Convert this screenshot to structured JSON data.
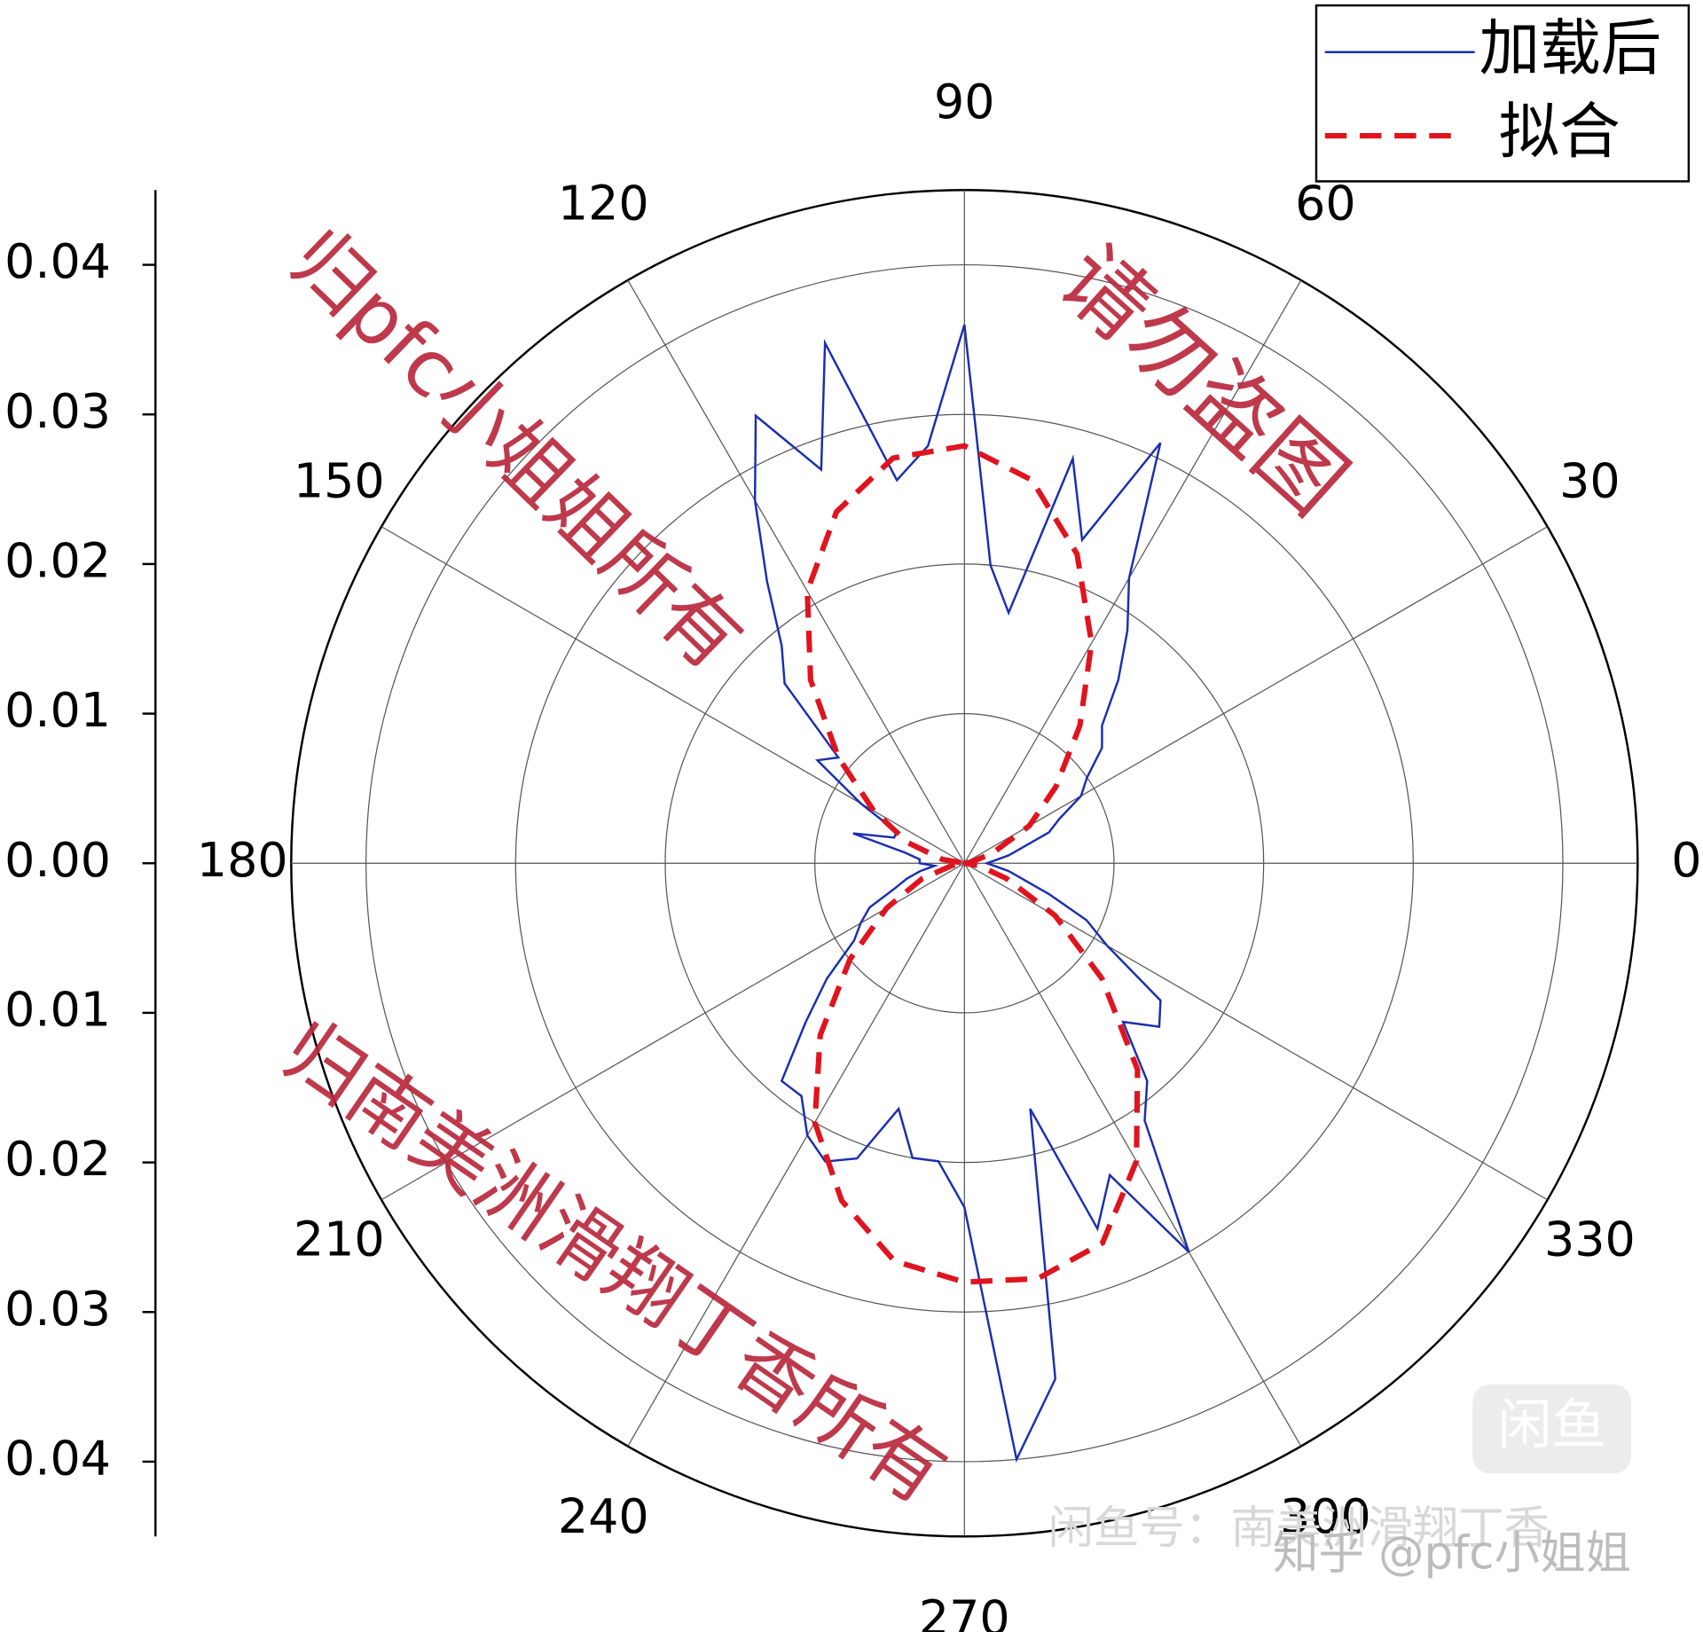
{
  "chart_data": {
    "type": "polar",
    "series": [
      {
        "name": "加载后",
        "color": "#1a2eb0",
        "dash": false,
        "x": [
          0,
          5,
          10,
          15,
          20,
          25,
          30,
          35,
          40,
          45,
          50,
          55,
          60,
          65,
          70,
          75,
          80,
          85,
          90,
          95,
          100,
          105,
          110,
          115,
          120,
          125,
          130,
          135,
          140,
          145,
          150,
          155,
          160,
          165,
          170,
          175,
          180,
          185,
          190,
          195,
          200,
          205,
          210,
          215,
          220,
          225,
          230,
          235,
          240,
          245,
          250,
          255,
          260,
          265,
          270,
          275,
          280,
          285,
          290,
          295,
          300,
          305,
          310,
          315,
          320,
          325,
          330,
          335,
          340,
          345,
          350,
          355
        ],
        "values": [
          0.0015,
          0.002,
          0.003,
          0.004,
          0.006,
          0.007,
          0.009,
          0.01,
          0.012,
          0.013,
          0.016,
          0.019,
          0.022,
          0.031,
          0.023,
          0.028,
          0.017,
          0.02,
          0.036,
          0.028,
          0.026,
          0.036,
          0.028,
          0.033,
          0.028,
          0.023,
          0.019,
          0.017,
          0.011,
          0.012,
          0.008,
          0.005,
          0.005,
          0.0077,
          0.004,
          0.003,
          0.003,
          0.002,
          0.003,
          0.004,
          0.005,
          0.007,
          0.008,
          0.009,
          0.012,
          0.015,
          0.019,
          0.019,
          0.021,
          0.022,
          0.021,
          0.017,
          0.02,
          0.02,
          0.023,
          0.04,
          0.035,
          0.017,
          0.026,
          0.023,
          0.03,
          0.021,
          0.019,
          0.015,
          0.017,
          0.016,
          0.011,
          0.009,
          0.006,
          0.004,
          0.003,
          0.002
        ]
      },
      {
        "name": "拟合",
        "color": "#e0141e",
        "dash": true,
        "x": [
          0,
          10,
          20,
          30,
          40,
          50,
          60,
          70,
          80,
          90,
          100,
          110,
          120,
          130,
          140,
          150,
          160,
          170,
          180,
          190,
          200,
          210,
          220,
          230,
          240,
          250,
          260,
          270,
          280,
          290,
          300,
          310,
          320,
          330,
          340,
          350
        ],
        "values": [
          0,
          0.0005,
          0.002,
          0.005,
          0.008,
          0.012,
          0.017,
          0.022,
          0.026,
          0.0279,
          0.0275,
          0.025,
          0.021,
          0.016,
          0.011,
          0.007,
          0.004,
          0.0015,
          0,
          0.0008,
          0.003,
          0.006,
          0.01,
          0.015,
          0.02,
          0.024,
          0.027,
          0.028,
          0.0282,
          0.027,
          0.023,
          0.018,
          0.012,
          0.007,
          0.003,
          0.001
        ]
      }
    ],
    "ylim": [
      0,
      0.045
    ],
    "yticks": [
      {
        "value": 0,
        "label": "0.00"
      },
      {
        "value": 0.01,
        "label": "0.01"
      },
      {
        "value": 0.02,
        "label": "0.02"
      },
      {
        "value": 0.03,
        "label": "0.03"
      },
      {
        "value": 0.04,
        "label": "0.04"
      }
    ],
    "xticks": [
      0,
      30,
      60,
      90,
      120,
      150,
      180,
      210,
      240,
      270,
      300,
      330
    ],
    "grid": true,
    "legend": "upper right",
    "annotations": [
      "归pfc小姐姐所有",
      "请勿盗图",
      "归南美洲滑翔丁香所有",
      "闲鱼号：南美洲滑翔丁香",
      "知乎 @pfc小姐姐",
      "闲鱼"
    ]
  }
}
